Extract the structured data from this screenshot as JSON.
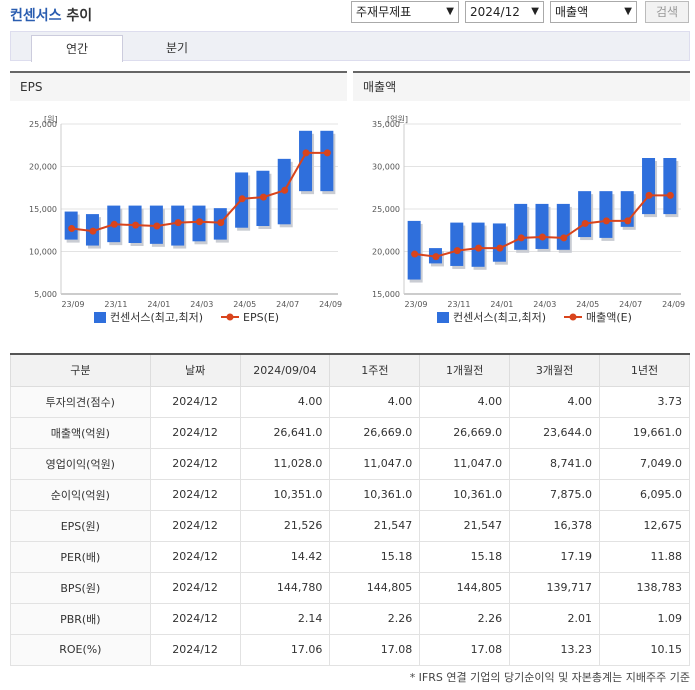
{
  "header": {
    "title_main": "컨센서스",
    "title_suffix": "추이",
    "select_type": "주재무제표",
    "select_period": "2024/12",
    "select_metric": "매출액",
    "search_label": "검색"
  },
  "tabs": [
    {
      "label": "연간"
    },
    {
      "label": "분기"
    }
  ],
  "panels": {
    "eps_title": "EPS",
    "sales_title": "매출액"
  },
  "chart_data": [
    {
      "type": "bar",
      "title": "EPS",
      "ylabel": "[원]",
      "ylim": [
        5000,
        25000
      ],
      "yticks": [
        "25,000",
        "20,000",
        "15,000",
        "10,000",
        "5,000"
      ],
      "xtick_labels": [
        "23/09",
        "23/11",
        "24/01",
        "24/03",
        "24/05",
        "24/07",
        "24/09"
      ],
      "legend": [
        "컨센서스(최고,최저)",
        "EPS(E)"
      ],
      "range_high": [
        14700,
        14400,
        15400,
        15400,
        15400,
        15400,
        15400,
        15100,
        19300,
        19500,
        20900,
        24200,
        24200
      ],
      "range_low": [
        11400,
        10700,
        11100,
        11000,
        10900,
        10700,
        11200,
        11400,
        12800,
        13000,
        13200,
        17100,
        17100
      ],
      "line": [
        12700,
        12400,
        13200,
        13100,
        13000,
        13400,
        13500,
        13400,
        16200,
        16400,
        17200,
        21600,
        21600
      ]
    },
    {
      "type": "bar",
      "title": "매출액",
      "ylabel": "[억원]",
      "ylim": [
        15000,
        35000
      ],
      "yticks": [
        "35,000",
        "30,000",
        "25,000",
        "20,000",
        "15,000"
      ],
      "xtick_labels": [
        "23/09",
        "23/11",
        "24/01",
        "24/03",
        "24/05",
        "24/07",
        "24/09"
      ],
      "legend": [
        "컨센서스(최고,최저)",
        "매출액(E)"
      ],
      "range_high": [
        23600,
        20400,
        23400,
        23400,
        23300,
        25600,
        25600,
        25600,
        27100,
        27100,
        27100,
        31000,
        31000
      ],
      "range_low": [
        16700,
        18600,
        18300,
        18200,
        18800,
        20200,
        20300,
        20200,
        21700,
        21600,
        22900,
        24400,
        24400
      ],
      "line": [
        19700,
        19400,
        20100,
        20400,
        20400,
        21600,
        21700,
        21600,
        23300,
        23600,
        23600,
        26600,
        26600
      ]
    }
  ],
  "table": {
    "headers": [
      "구분",
      "날짜",
      "2024/09/04",
      "1주전",
      "1개월전",
      "3개월전",
      "1년전"
    ],
    "rows": [
      {
        "label": "투자의견(점수)",
        "date": "2024/12",
        "v": [
          "4.00",
          "4.00",
          "4.00",
          "4.00",
          "3.73"
        ]
      },
      {
        "label": "매출액(억원)",
        "date": "2024/12",
        "v": [
          "26,641.0",
          "26,669.0",
          "26,669.0",
          "23,644.0",
          "19,661.0"
        ]
      },
      {
        "label": "영업이익(억원)",
        "date": "2024/12",
        "v": [
          "11,028.0",
          "11,047.0",
          "11,047.0",
          "8,741.0",
          "7,049.0"
        ]
      },
      {
        "label": "순이익(억원)",
        "date": "2024/12",
        "v": [
          "10,351.0",
          "10,361.0",
          "10,361.0",
          "7,875.0",
          "6,095.0"
        ]
      },
      {
        "label": "EPS(원)",
        "date": "2024/12",
        "v": [
          "21,526",
          "21,547",
          "21,547",
          "16,378",
          "12,675"
        ]
      },
      {
        "label": "PER(배)",
        "date": "2024/12",
        "v": [
          "14.42",
          "15.18",
          "15.18",
          "17.19",
          "11.88"
        ]
      },
      {
        "label": "BPS(원)",
        "date": "2024/12",
        "v": [
          "144,780",
          "144,805",
          "144,805",
          "139,717",
          "138,783"
        ]
      },
      {
        "label": "PBR(배)",
        "date": "2024/12",
        "v": [
          "2.14",
          "2.26",
          "2.26",
          "2.01",
          "1.09"
        ]
      },
      {
        "label": "ROE(%)",
        "date": "2024/12",
        "v": [
          "17.06",
          "17.08",
          "17.08",
          "13.23",
          "10.15"
        ]
      }
    ]
  },
  "footnote": "* IFRS 연결 기업의 당기순이익 및 자본총계는 지배주주 기준",
  "colors": {
    "bar": "#2f6fdc",
    "line": "#d9441c",
    "title": "#2a5db0"
  }
}
